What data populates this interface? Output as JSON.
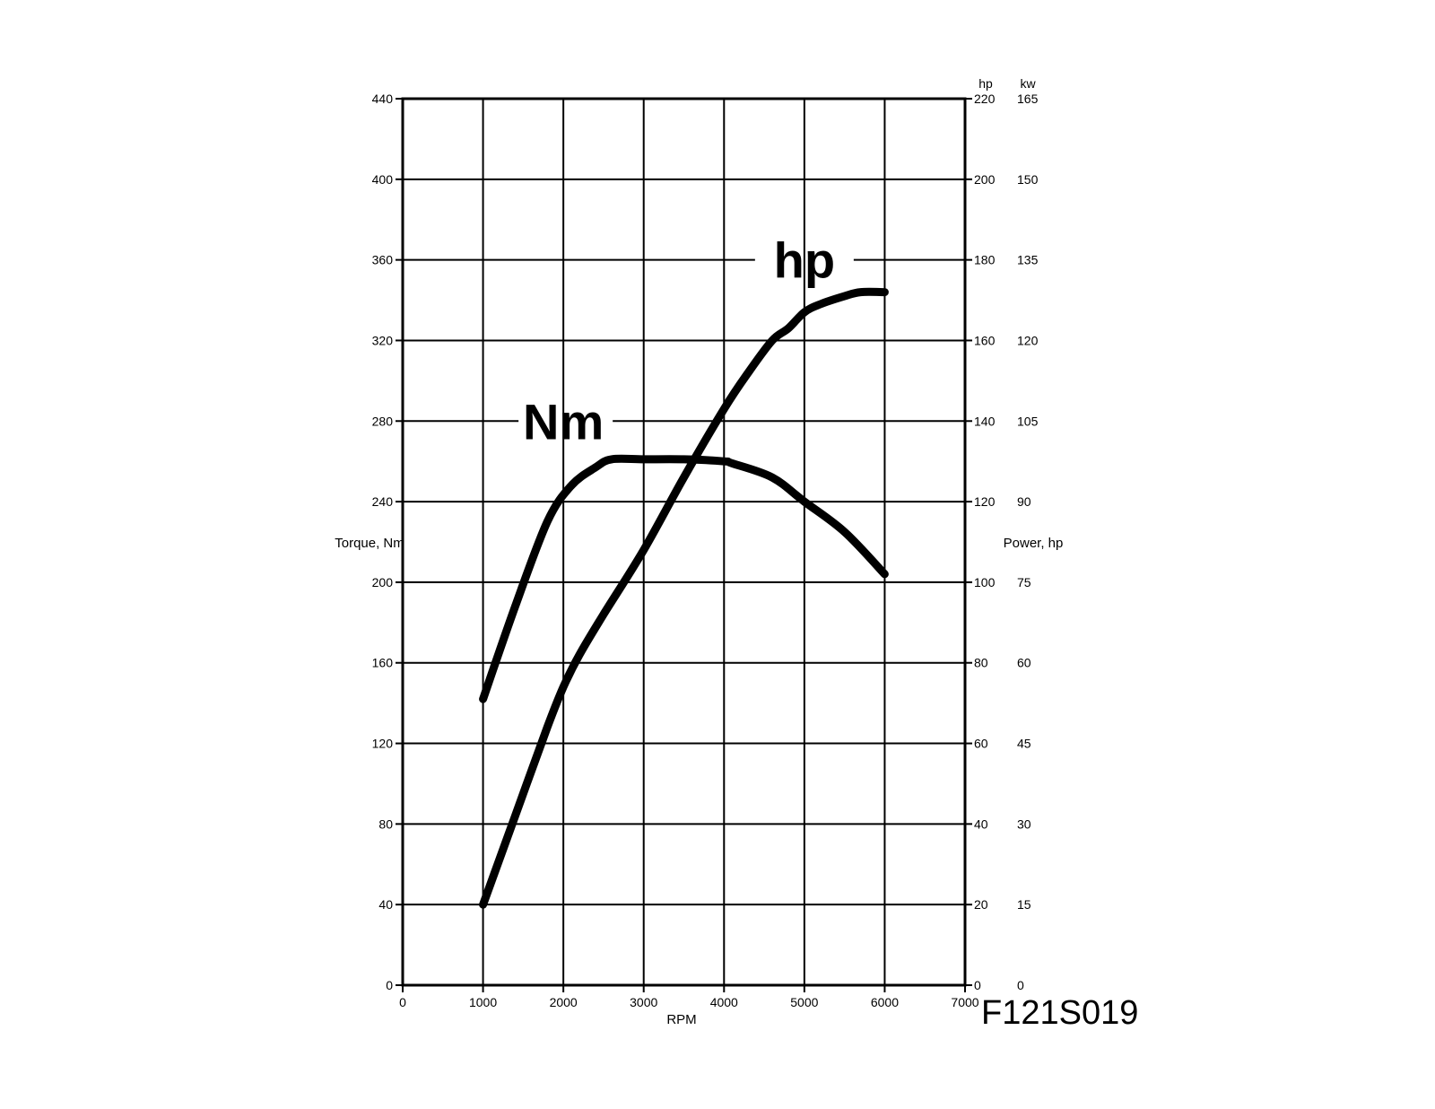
{
  "chart_data": {
    "type": "line",
    "xlabel": "RPM",
    "xlim": [
      0,
      7000
    ],
    "x_ticks": [
      0,
      1000,
      2000,
      3000,
      4000,
      5000,
      6000,
      7000
    ],
    "y_left": {
      "label": "Torque, Nm",
      "lim": [
        0,
        440
      ],
      "ticks": [
        0,
        40,
        80,
        120,
        160,
        200,
        240,
        280,
        320,
        360,
        400,
        440
      ]
    },
    "y_right_hp": {
      "unit": "hp",
      "label": "Power, hp",
      "lim": [
        0,
        220
      ],
      "ticks": [
        0,
        20,
        40,
        60,
        80,
        100,
        120,
        140,
        160,
        180,
        200,
        220
      ]
    },
    "y_right_kw": {
      "unit": "kw",
      "ticks": [
        0,
        15,
        30,
        45,
        60,
        75,
        90,
        105,
        120,
        135,
        150,
        165
      ]
    },
    "grid": true,
    "series": [
      {
        "name": "Nm",
        "axis": "left",
        "x": [
          1000,
          1400,
          1800,
          2100,
          2400,
          2600,
          3000,
          3500,
          4000,
          4100,
          4600,
          5000,
          5500,
          6000
        ],
        "values": [
          142,
          188,
          230,
          248,
          257,
          261,
          261,
          261,
          260,
          259,
          252,
          240,
          225,
          204
        ]
      },
      {
        "name": "hp",
        "axis": "right_hp",
        "x": [
          1000,
          1400,
          1800,
          2000,
          2200,
          2500,
          3000,
          3500,
          4000,
          4300,
          4600,
          4800,
          5000,
          5200,
          5500,
          5700,
          6000
        ],
        "values": [
          20,
          42,
          64,
          74,
          82,
          92,
          108,
          126,
          143,
          152,
          160,
          163,
          167,
          169,
          171,
          172,
          172
        ]
      }
    ],
    "label_positions": {
      "Nm": {
        "x": 2000,
        "y": 280
      },
      "hp": {
        "x": 5000,
        "y": 360
      }
    },
    "figure_id": "F121S019"
  }
}
